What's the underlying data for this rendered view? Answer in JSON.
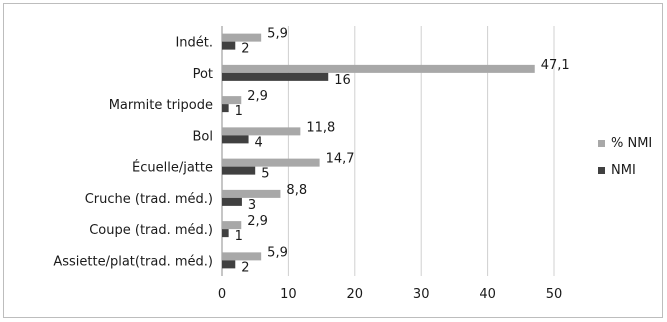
{
  "chart_data": {
    "type": "bar",
    "orientation": "horizontal",
    "categories": [
      "Indét.",
      "Pot",
      "Marmite tripode",
      "Bol",
      "Écuelle/jatte",
      "Cruche (trad. méd.)",
      "Coupe (trad. méd.)",
      "Assiette/plat(trad. méd.)"
    ],
    "series": [
      {
        "name": "% NMI",
        "color": "#a8a8a8",
        "values": [
          5.9,
          47.1,
          2.9,
          11.8,
          14.7,
          8.8,
          2.9,
          5.9
        ],
        "labels": [
          "5,9",
          "47,1",
          "2,9",
          "11,8",
          "14,7",
          "8,8",
          "2,9",
          "5,9"
        ]
      },
      {
        "name": "NMI",
        "color": "#404040",
        "values": [
          2,
          16,
          1,
          4,
          5,
          3,
          1,
          2
        ],
        "labels": [
          "2",
          "16",
          "1",
          "4",
          "5",
          "3",
          "1",
          "2"
        ]
      }
    ],
    "xlim": [
      0,
      50
    ],
    "xticks": [
      "0",
      "10",
      "20",
      "30",
      "40",
      "50"
    ],
    "gridlines": true,
    "legend_position": "right"
  }
}
